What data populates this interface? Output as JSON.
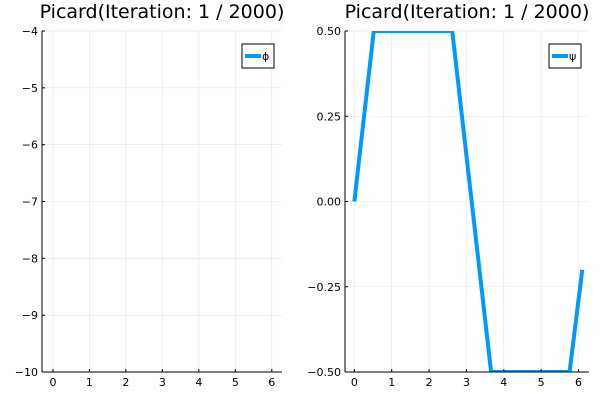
{
  "chart_data": [
    {
      "type": "line",
      "title": "Picard(Iteration: 1 / 2000)",
      "xlabel": "",
      "ylabel": "",
      "xlim": [
        -0.3,
        6.28
      ],
      "ylim": [
        -10,
        -4
      ],
      "x_ticks": [
        0,
        1,
        2,
        3,
        4,
        5,
        6
      ],
      "x_tick_labels": [
        "0",
        "1",
        "2",
        "3",
        "4",
        "5",
        "6"
      ],
      "y_ticks": [
        -10,
        -9,
        -8,
        -7,
        -6,
        -5,
        -4
      ],
      "y_tick_labels": [
        "−10",
        "−9",
        "−8",
        "−7",
        "−6",
        "−5",
        "−4"
      ],
      "grid": true,
      "legend_position": "top-right",
      "series": [
        {
          "name": "ϕ",
          "color": "#009AFA",
          "x": [],
          "y": []
        }
      ]
    },
    {
      "type": "line",
      "title": "Picard(Iteration: 1 / 2000)",
      "xlabel": "",
      "ylabel": "",
      "xlim": [
        -0.25,
        6.28
      ],
      "ylim": [
        -0.5,
        0.5
      ],
      "x_ticks": [
        0,
        1,
        2,
        3,
        4,
        5,
        6
      ],
      "x_tick_labels": [
        "0",
        "1",
        "2",
        "3",
        "4",
        "5",
        "6"
      ],
      "y_ticks": [
        -0.5,
        -0.25,
        0,
        0.25,
        0.5
      ],
      "y_tick_labels": [
        "−0.50",
        "−0.25",
        "0.00",
        "0.25",
        "0.50"
      ],
      "grid": true,
      "legend_position": "top-right",
      "series": [
        {
          "name": "ψ",
          "color": "#009AFA",
          "x": [
            0.0,
            0.52,
            2.62,
            3.66,
            5.76,
            6.1
          ],
          "y": [
            0.0,
            0.5,
            0.5,
            -0.5,
            -0.5,
            -0.2
          ]
        }
      ]
    }
  ]
}
